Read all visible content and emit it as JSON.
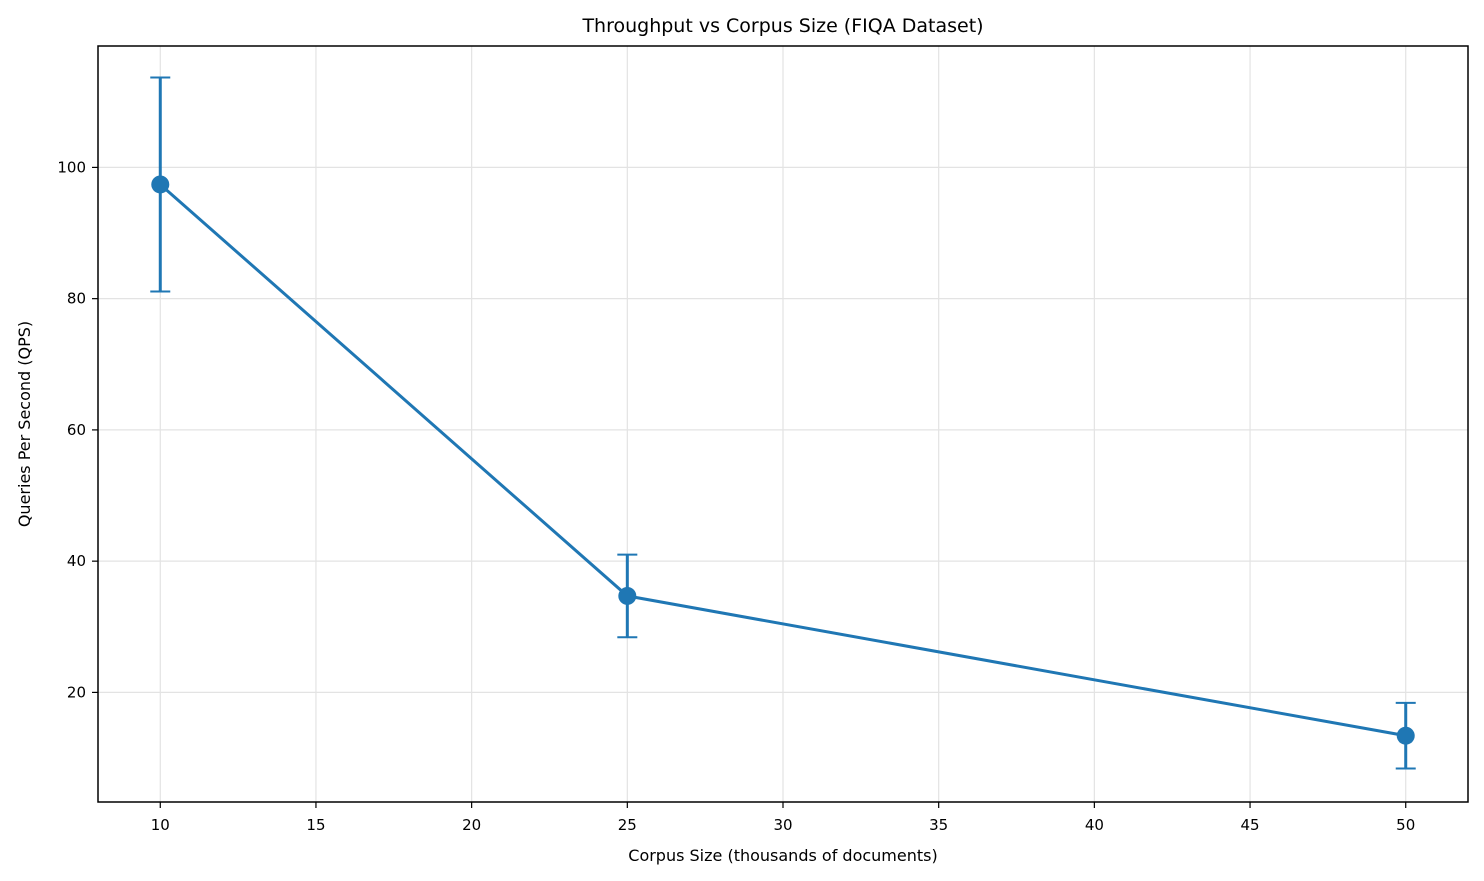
{
  "chart_data": {
    "type": "line",
    "title": "Throughput vs Corpus Size (FIQA Dataset)",
    "xlabel": "Corpus Size (thousands of documents)",
    "ylabel": "Queries Per Second (QPS)",
    "xlim": [
      8,
      52
    ],
    "ylim": [
      3.3,
      118.5
    ],
    "xticks": [
      10,
      15,
      20,
      25,
      30,
      35,
      40,
      45,
      50
    ],
    "yticks": [
      20,
      40,
      60,
      80,
      100
    ],
    "grid": true,
    "series": [
      {
        "x": [
          10,
          25,
          50
        ],
        "y": [
          97.4,
          34.7,
          13.4
        ],
        "error": [
          16.3,
          6.3,
          5.0
        ],
        "color": "#1f77b4"
      }
    ]
  }
}
